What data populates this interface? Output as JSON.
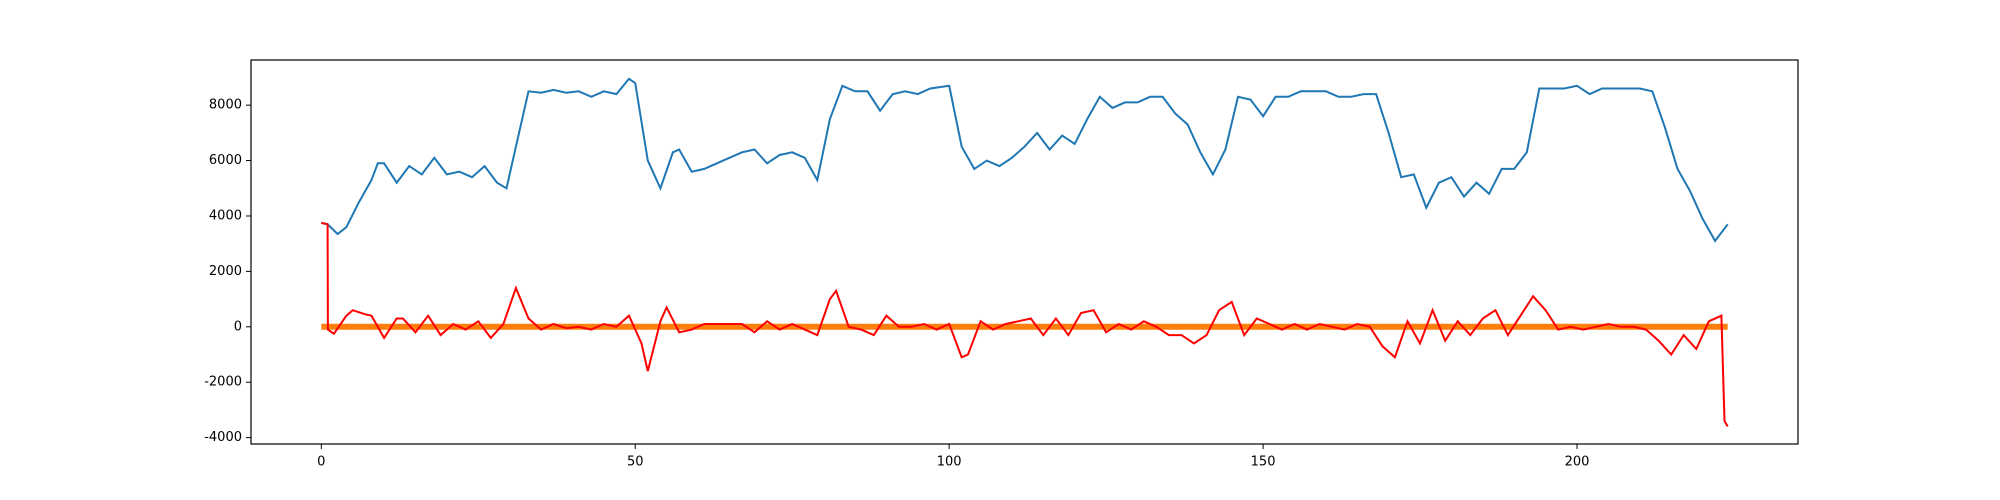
{
  "chart_data": {
    "type": "line",
    "xlim": [
      -11.2,
      235.2
    ],
    "xticks": [
      0,
      50,
      100,
      150,
      200
    ],
    "ylim": [
      -4230,
      9630
    ],
    "yticks": [
      -4000,
      -2000,
      0,
      2000,
      4000,
      6000,
      8000
    ],
    "series": [
      {
        "color": "#1f77b4",
        "width": 2,
        "x": [
          0,
          1,
          2.6,
          4,
          6,
          8,
          9,
          10,
          12,
          14,
          16,
          18,
          20,
          22,
          24,
          26,
          28,
          29.5,
          31,
          33,
          35,
          37,
          39,
          41,
          43,
          45,
          47,
          49,
          50,
          52,
          54,
          56,
          57,
          59,
          61,
          63,
          65,
          67,
          69,
          71,
          73,
          75,
          77,
          79,
          81,
          83,
          85,
          87,
          89,
          91,
          93,
          95,
          97,
          100,
          102,
          104,
          106,
          108,
          110,
          112,
          114,
          116,
          118,
          120,
          122,
          124,
          126,
          128,
          130,
          132,
          134,
          136,
          138,
          140,
          142,
          144,
          146,
          148,
          150,
          152,
          154,
          156,
          158,
          160,
          162,
          164,
          166,
          168,
          170,
          172,
          174,
          176,
          178,
          180,
          182,
          184,
          186,
          188,
          190,
          192,
          194,
          196,
          198,
          200,
          202,
          204,
          206,
          208,
          210,
          212,
          214,
          216,
          218,
          220,
          222,
          224
        ],
        "values": [
          3750,
          3700,
          3350,
          3600,
          4500,
          5300,
          5900,
          5900,
          5200,
          5800,
          5500,
          6100,
          5500,
          5600,
          5400,
          5800,
          5200,
          5000,
          6500,
          8500,
          8450,
          8550,
          8450,
          8500,
          8300,
          8500,
          8400,
          8950,
          8800,
          6000,
          5000,
          6300,
          6400,
          5600,
          5700,
          5900,
          6100,
          6300,
          6400,
          5900,
          6200,
          6300,
          6100,
          5300,
          7500,
          8700,
          8500,
          8500,
          7800,
          8400,
          8500,
          8400,
          8600,
          8700,
          6500,
          5700,
          6000,
          5800,
          6100,
          6500,
          7000,
          6400,
          6900,
          6600,
          7500,
          8300,
          7900,
          8100,
          8100,
          8300,
          8300,
          7700,
          7300,
          6300,
          5500,
          6400,
          8300,
          8200,
          7600,
          8300,
          8300,
          8500,
          8500,
          8500,
          8300,
          8300,
          8400,
          8400,
          7000,
          5400,
          5500,
          4300,
          5200,
          5400,
          4700,
          5200,
          4800,
          5700,
          5700,
          6300,
          8600,
          8600,
          8600,
          8700,
          8400,
          8600,
          8600,
          8600,
          8600,
          8500,
          7200,
          5700,
          4900,
          3900,
          3100,
          3700
        ]
      },
      {
        "color": "#ff7f0e",
        "width": 6,
        "x": [
          0,
          224
        ],
        "values": [
          0,
          0
        ]
      },
      {
        "color": "#ff0000",
        "width": 2,
        "x": [
          0,
          1,
          1.05,
          2,
          4,
          5,
          7,
          8,
          10,
          12,
          13,
          15,
          17,
          19,
          21,
          23,
          25,
          27,
          29,
          31,
          33,
          35,
          37,
          39,
          41,
          43,
          45,
          47,
          49,
          51,
          52,
          54,
          55,
          57,
          59,
          61,
          63,
          65,
          67,
          69,
          71,
          73,
          75,
          77,
          79,
          81,
          82,
          84,
          86,
          88,
          90,
          92,
          94,
          96,
          98,
          100,
          102,
          103,
          105,
          107,
          109,
          111,
          113,
          115,
          117,
          119,
          121,
          123,
          125,
          127,
          129,
          131,
          133,
          135,
          137,
          139,
          141,
          143,
          145,
          147,
          149,
          151,
          153,
          155,
          157,
          159,
          161,
          163,
          165,
          167,
          169,
          171,
          173,
          175,
          177,
          179,
          181,
          183,
          185,
          187,
          189,
          191,
          193,
          195,
          197,
          199,
          201,
          203,
          205,
          207,
          209,
          211,
          213,
          215,
          217,
          219,
          221,
          223,
          223.5,
          224
        ],
        "values": [
          3750,
          3700,
          -100,
          -250,
          400,
          600,
          450,
          400,
          -400,
          300,
          300,
          -200,
          400,
          -300,
          100,
          -100,
          200,
          -400,
          100,
          1400,
          300,
          -100,
          100,
          -50,
          0,
          -100,
          100,
          0,
          400,
          -600,
          -1600,
          200,
          700,
          -200,
          -100,
          100,
          100,
          100,
          100,
          -200,
          200,
          -100,
          100,
          -100,
          -300,
          1000,
          1300,
          0,
          -100,
          -300,
          400,
          0,
          0,
          100,
          -100,
          100,
          -1100,
          -1000,
          200,
          -100,
          100,
          200,
          300,
          -300,
          300,
          -300,
          500,
          600,
          -200,
          100,
          -100,
          200,
          0,
          -300,
          -300,
          -600,
          -300,
          600,
          900,
          -300,
          300,
          100,
          -100,
          100,
          -100,
          100,
          0,
          -100,
          100,
          0,
          -700,
          -1100,
          200,
          -600,
          600,
          -500,
          200,
          -300,
          300,
          600,
          -300,
          400,
          1100,
          600,
          -100,
          0,
          -100,
          0,
          100,
          0,
          0,
          -100,
          -500,
          -1000,
          -300,
          -800,
          200,
          400,
          -3400,
          -3600
        ]
      }
    ]
  }
}
